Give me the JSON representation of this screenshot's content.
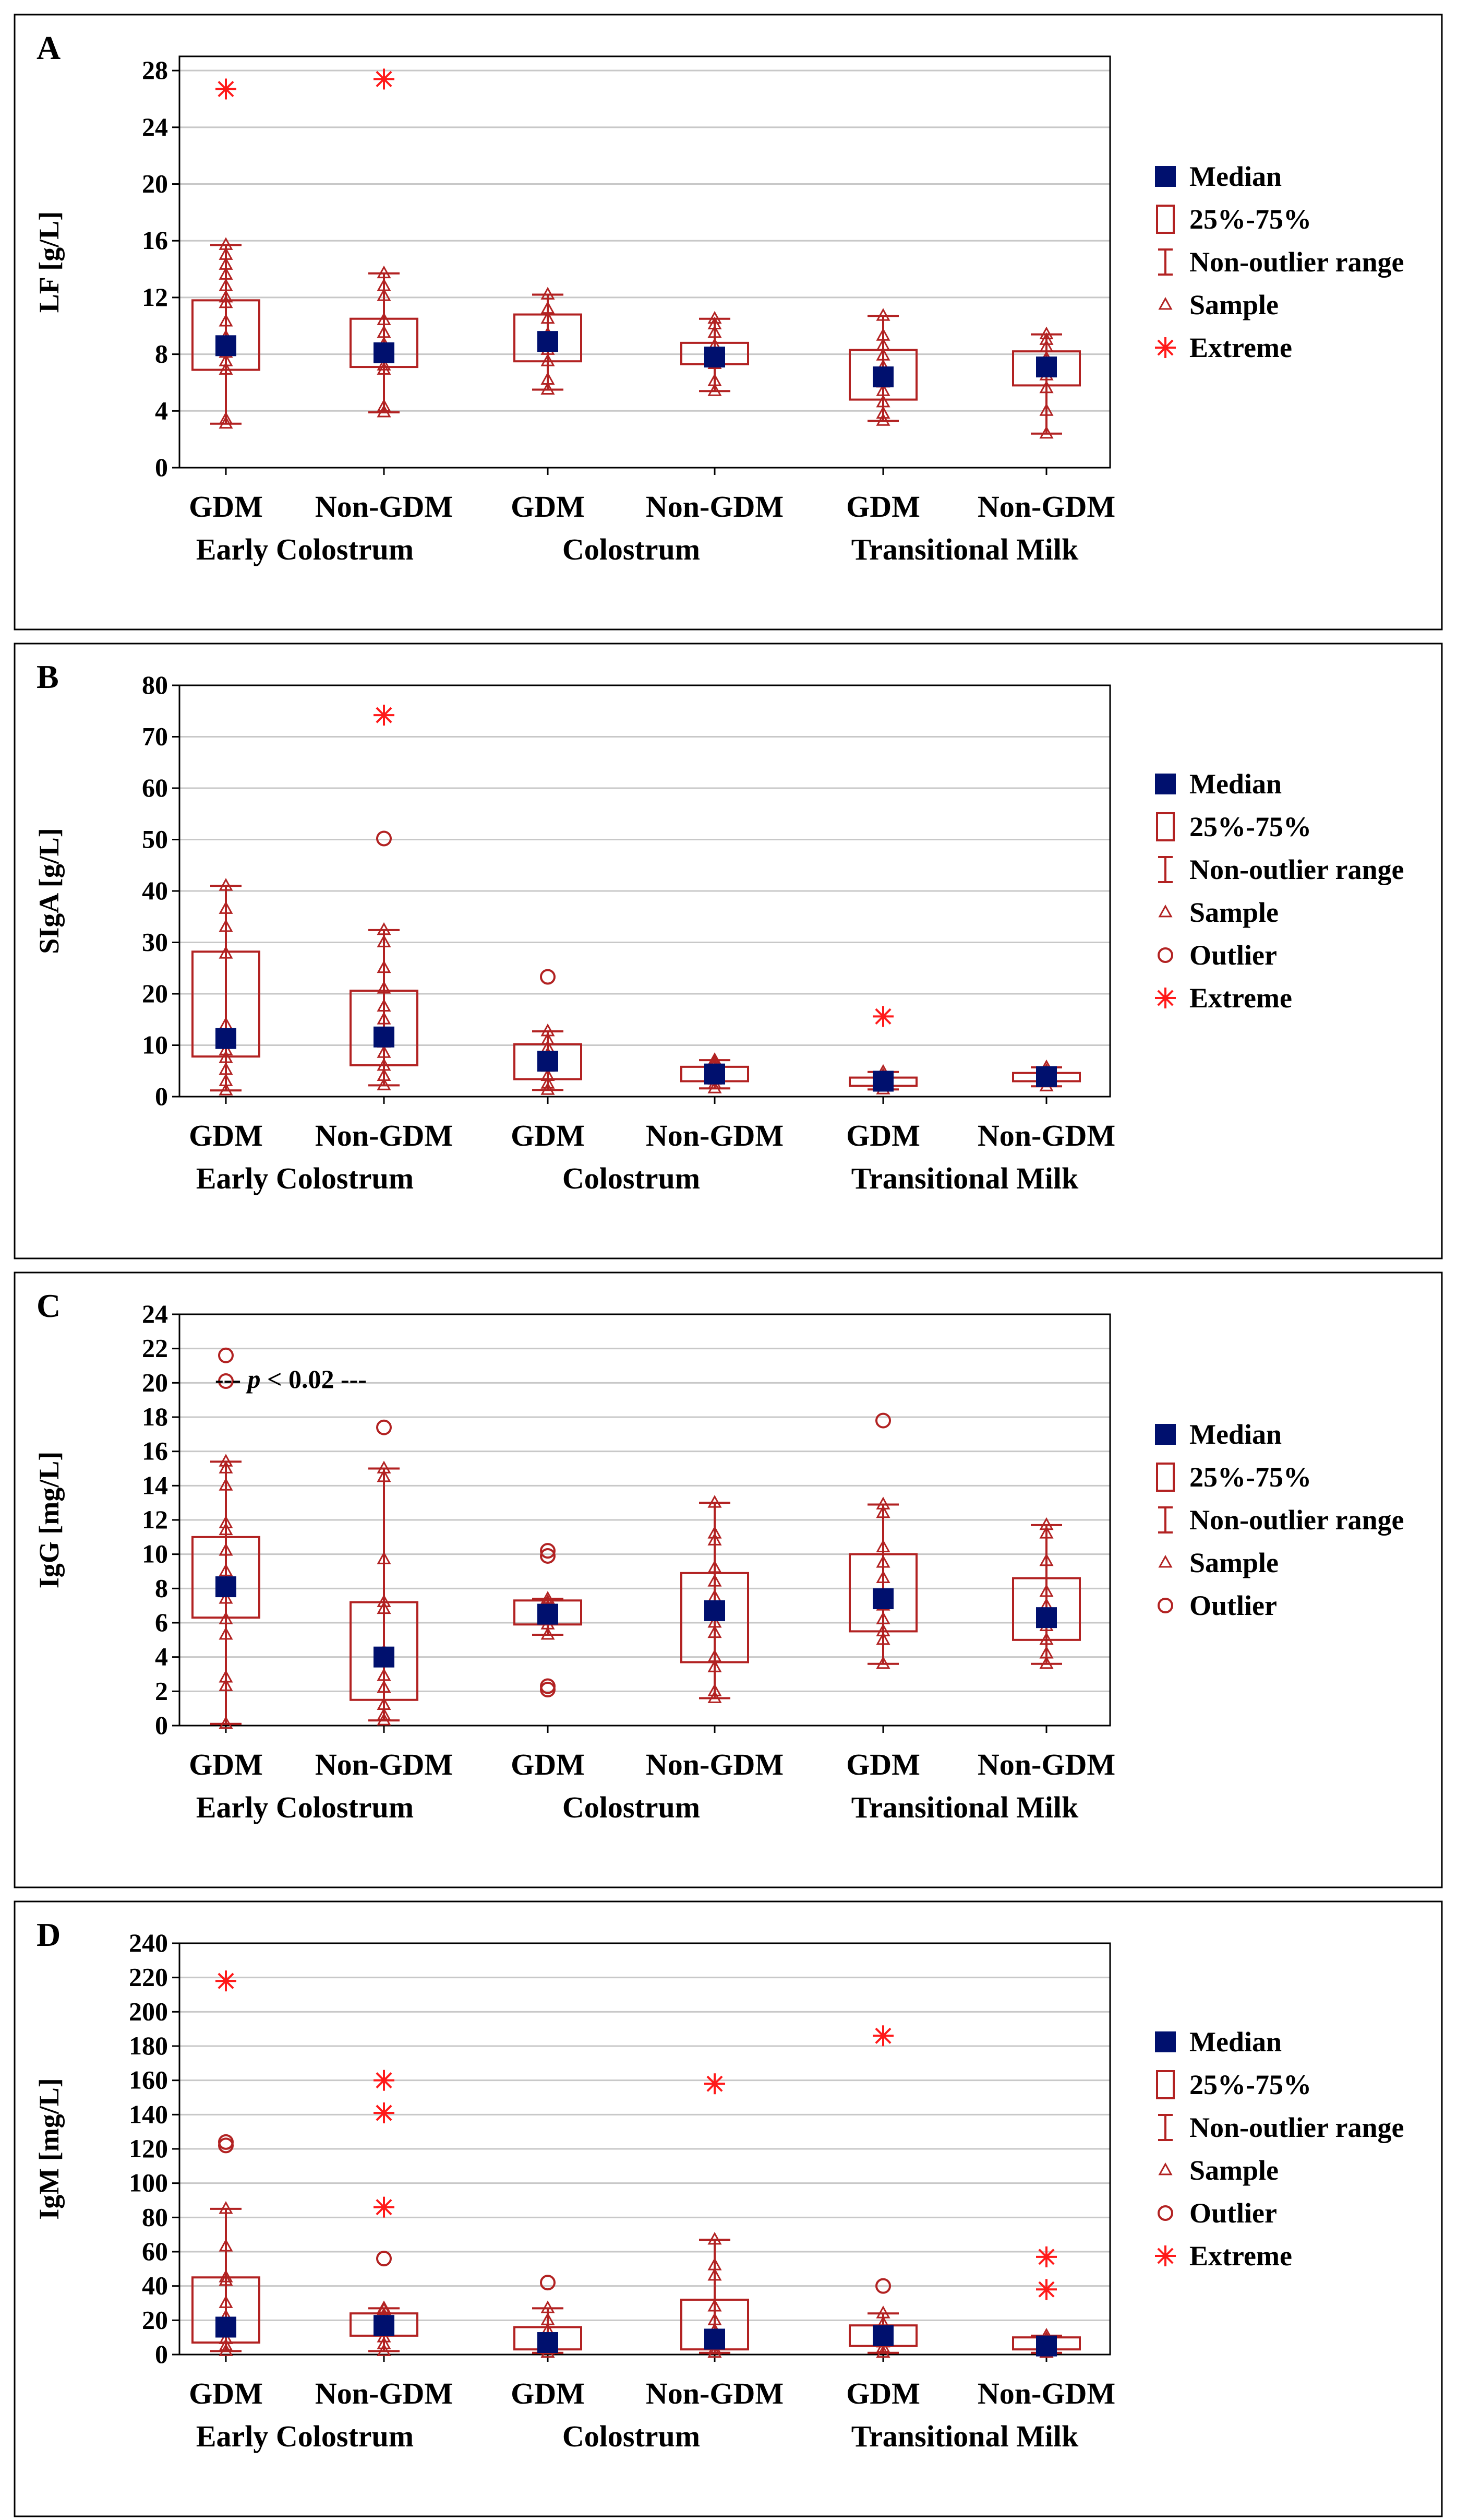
{
  "colors": {
    "box": "#b22222",
    "median": "#00106e",
    "extreme": "#ff1a1a",
    "grid": "#c8c8c8",
    "frame": "#000000"
  },
  "chart_data": [
    {
      "type": "boxplot",
      "panel_letter": "A",
      "ylabel": "LF [g/L]",
      "ylim": [
        0,
        29
      ],
      "yticks": [
        0,
        4,
        8,
        12,
        16,
        20,
        24,
        28
      ],
      "groups": [
        {
          "label": "GDM",
          "median": 8.6,
          "q1": 6.9,
          "q3": 11.8,
          "whisker_low": 3.1,
          "whisker_high": 15.7,
          "samples": [
            3.1,
            3.4,
            6.9,
            7.5,
            8.1,
            8.6,
            9.2,
            10.3,
            11.6,
            12.0,
            12.8,
            13.6,
            14.3,
            15.0,
            15.7
          ],
          "outliers": [],
          "extremes": [
            26.7
          ]
        },
        {
          "label": "Non-GDM",
          "median": 8.1,
          "q1": 7.1,
          "q3": 10.5,
          "whisker_low": 3.9,
          "whisker_high": 13.7,
          "samples": [
            3.9,
            4.3,
            6.9,
            7.2,
            7.8,
            8.1,
            8.7,
            9.5,
            10.4,
            12.1,
            12.8,
            13.7
          ],
          "outliers": [],
          "extremes": [
            27.4
          ]
        },
        {
          "label": "GDM",
          "median": 8.9,
          "q1": 7.5,
          "q3": 10.8,
          "whisker_low": 5.5,
          "whisker_high": 12.2,
          "samples": [
            5.5,
            6.2,
            7.5,
            8.3,
            8.9,
            9.4,
            10.5,
            11.2,
            12.2
          ],
          "outliers": [],
          "extremes": []
        },
        {
          "label": "Non-GDM",
          "median": 7.8,
          "q1": 7.3,
          "q3": 8.8,
          "whisker_low": 5.4,
          "whisker_high": 10.5,
          "samples": [
            5.4,
            6.1,
            7.3,
            7.7,
            8.1,
            8.6,
            9.5,
            10.1,
            10.5
          ],
          "outliers": [],
          "extremes": []
        },
        {
          "label": "GDM",
          "median": 6.4,
          "q1": 4.8,
          "q3": 8.3,
          "whisker_low": 3.3,
          "whisker_high": 10.7,
          "samples": [
            3.3,
            3.8,
            4.6,
            5.4,
            6.0,
            6.4,
            7.1,
            7.9,
            8.6,
            9.3,
            10.7
          ],
          "outliers": [],
          "extremes": []
        },
        {
          "label": "Non-GDM",
          "median": 7.1,
          "q1": 5.8,
          "q3": 8.2,
          "whisker_low": 2.4,
          "whisker_high": 9.4,
          "samples": [
            2.4,
            4.0,
            5.6,
            6.5,
            7.1,
            7.7,
            8.5,
            9.0,
            9.4
          ],
          "outliers": [],
          "extremes": []
        }
      ],
      "legend": [
        "Median",
        "25%-75%",
        "Non-outlier range",
        "Sample",
        "Extreme"
      ],
      "annotation": ""
    },
    {
      "type": "boxplot",
      "panel_letter": "B",
      "ylabel": "SIgA [g/L]",
      "ylim": [
        0,
        80
      ],
      "yticks": [
        0,
        10,
        20,
        30,
        40,
        50,
        60,
        70,
        80
      ],
      "groups": [
        {
          "label": "GDM",
          "median": 11.3,
          "q1": 7.8,
          "q3": 28.2,
          "whisker_low": 1.2,
          "whisker_high": 41.0,
          "samples": [
            1.2,
            3.0,
            5.2,
            7.5,
            9.0,
            10.5,
            12.0,
            14.0,
            27.8,
            33.0,
            36.5,
            41.0
          ],
          "outliers": [],
          "extremes": []
        },
        {
          "label": "Non-GDM",
          "median": 11.6,
          "q1": 6.1,
          "q3": 20.6,
          "whisker_low": 2.2,
          "whisker_high": 32.4,
          "samples": [
            2.2,
            4.0,
            6.0,
            8.5,
            10.5,
            12.0,
            15.0,
            17.5,
            21.0,
            25.0,
            30.0,
            32.4
          ],
          "outliers": [
            50.2
          ],
          "extremes": [
            74.2
          ]
        },
        {
          "label": "GDM",
          "median": 6.9,
          "q1": 3.4,
          "q3": 10.2,
          "whisker_low": 1.3,
          "whisker_high": 12.7,
          "samples": [
            1.3,
            2.5,
            4.0,
            5.8,
            6.9,
            8.2,
            9.5,
            11.0,
            12.7
          ],
          "outliers": [
            23.3
          ],
          "extremes": []
        },
        {
          "label": "Non-GDM",
          "median": 4.4,
          "q1": 3.0,
          "q3": 5.8,
          "whisker_low": 1.6,
          "whisker_high": 7.1,
          "samples": [
            1.6,
            2.4,
            3.3,
            4.0,
            4.6,
            5.2,
            6.0,
            6.6,
            7.1
          ],
          "outliers": [],
          "extremes": []
        },
        {
          "label": "GDM",
          "median": 3.0,
          "q1": 2.1,
          "q3": 3.7,
          "whisker_low": 1.4,
          "whisker_high": 4.8,
          "samples": [
            1.4,
            2.0,
            2.6,
            3.0,
            3.5,
            4.1,
            4.8
          ],
          "outliers": [],
          "extremes": [
            15.6
          ]
        },
        {
          "label": "Non-GDM",
          "median": 3.9,
          "q1": 3.0,
          "q3": 4.6,
          "whisker_low": 2.0,
          "whisker_high": 5.7,
          "samples": [
            2.0,
            2.8,
            3.4,
            3.9,
            4.4,
            5.0,
            5.7
          ],
          "outliers": [],
          "extremes": []
        }
      ],
      "legend": [
        "Median",
        "25%-75%",
        "Non-outlier range",
        "Sample",
        "Outlier",
        "Extreme"
      ],
      "annotation": ""
    },
    {
      "type": "boxplot",
      "panel_letter": "C",
      "ylabel": "IgG [mg/L]",
      "ylim": [
        0,
        24
      ],
      "yticks": [
        0,
        2,
        4,
        6,
        8,
        10,
        12,
        14,
        16,
        18,
        20,
        22,
        24
      ],
      "groups": [
        {
          "label": "GDM",
          "median": 8.1,
          "q1": 6.3,
          "q3": 11.0,
          "whisker_low": 0.1,
          "whisker_high": 15.4,
          "samples": [
            0.1,
            2.3,
            2.8,
            5.3,
            6.2,
            7.4,
            8.1,
            9.0,
            10.2,
            11.4,
            11.8,
            14.0,
            15.0,
            15.4
          ],
          "outliers": [
            20.1,
            21.6
          ],
          "extremes": []
        },
        {
          "label": "Non-GDM",
          "median": 4.0,
          "q1": 1.5,
          "q3": 7.2,
          "whisker_low": 0.3,
          "whisker_high": 15.0,
          "samples": [
            0.3,
            0.6,
            1.2,
            2.2,
            2.9,
            3.8,
            4.3,
            6.8,
            7.2,
            9.7,
            14.5,
            15.0
          ],
          "outliers": [
            17.4
          ],
          "extremes": []
        },
        {
          "label": "GDM",
          "median": 6.5,
          "q1": 5.9,
          "q3": 7.3,
          "whisker_low": 5.3,
          "whisker_high": 7.4,
          "samples": [
            5.3,
            5.9,
            6.2,
            6.5,
            6.9,
            7.2,
            7.4
          ],
          "outliers": [
            2.1,
            2.3,
            9.9,
            10.2
          ],
          "extremes": []
        },
        {
          "label": "Non-GDM",
          "median": 6.7,
          "q1": 3.7,
          "q3": 8.9,
          "whisker_low": 1.6,
          "whisker_high": 13.0,
          "samples": [
            1.6,
            2.0,
            3.4,
            4.0,
            5.4,
            6.0,
            6.7,
            7.5,
            8.4,
            9.2,
            10.8,
            11.2,
            13.0
          ],
          "outliers": [],
          "extremes": []
        },
        {
          "label": "GDM",
          "median": 7.4,
          "q1": 5.5,
          "q3": 10.0,
          "whisker_low": 3.6,
          "whisker_high": 12.9,
          "samples": [
            3.6,
            5.0,
            5.5,
            6.2,
            7.0,
            7.4,
            8.6,
            9.5,
            10.4,
            12.4,
            12.9
          ],
          "outliers": [
            17.8
          ],
          "extremes": []
        },
        {
          "label": "Non-GDM",
          "median": 6.3,
          "q1": 5.0,
          "q3": 8.6,
          "whisker_low": 3.6,
          "whisker_high": 11.7,
          "samples": [
            3.6,
            4.2,
            5.0,
            5.8,
            6.3,
            7.0,
            7.8,
            9.6,
            11.2,
            11.7
          ],
          "outliers": [],
          "extremes": []
        }
      ],
      "legend": [
        "Median",
        "25%-75%",
        "Non-outlier range",
        "Sample",
        "Outlier"
      ],
      "annotation": "--- p < 0.02 ---",
      "annotation_parts": {
        "lead": "--- ",
        "italic": "p",
        "rest": " < 0.02 ---",
        "at_y": 20.2
      }
    },
    {
      "type": "boxplot",
      "panel_letter": "D",
      "ylabel": "IgM [mg/L]",
      "ylim": [
        0,
        240
      ],
      "yticks": [
        0,
        20,
        40,
        60,
        80,
        100,
        120,
        140,
        160,
        180,
        200,
        220,
        240
      ],
      "groups": [
        {
          "label": "GDM",
          "median": 16,
          "q1": 7,
          "q3": 45,
          "whisker_low": 2,
          "whisker_high": 85,
          "samples": [
            2,
            5,
            9,
            14,
            18,
            22,
            30,
            43,
            45,
            63,
            85
          ],
          "outliers": [
            122,
            124
          ],
          "extremes": [
            218
          ]
        },
        {
          "label": "Non-GDM",
          "median": 17,
          "q1": 11,
          "q3": 24,
          "whisker_low": 2,
          "whisker_high": 27,
          "samples": [
            2,
            6,
            10,
            14,
            17,
            20,
            23,
            26,
            27
          ],
          "outliers": [
            56
          ],
          "extremes": [
            86,
            141,
            160
          ]
        },
        {
          "label": "GDM",
          "median": 7,
          "q1": 3,
          "q3": 16,
          "whisker_low": 1,
          "whisker_high": 27,
          "samples": [
            1,
            3,
            5,
            7,
            10,
            14,
            20,
            27
          ],
          "outliers": [
            42
          ],
          "extremes": []
        },
        {
          "label": "Non-GDM",
          "median": 9,
          "q1": 3,
          "q3": 32,
          "whisker_low": 1,
          "whisker_high": 67,
          "samples": [
            1,
            3,
            6,
            9,
            14,
            20,
            28,
            46,
            52,
            67
          ],
          "outliers": [],
          "extremes": [
            158
          ]
        },
        {
          "label": "GDM",
          "median": 11,
          "q1": 5,
          "q3": 17,
          "whisker_low": 1,
          "whisker_high": 24,
          "samples": [
            1,
            4,
            7,
            11,
            14,
            18,
            24
          ],
          "outliers": [
            40
          ],
          "extremes": [
            186
          ]
        },
        {
          "label": "Non-GDM",
          "median": 5,
          "q1": 3,
          "q3": 10,
          "whisker_low": 1,
          "whisker_high": 11,
          "samples": [
            1,
            3,
            5,
            7,
            9,
            11
          ],
          "outliers": [],
          "extremes": [
            38,
            57
          ]
        }
      ],
      "legend": [
        "Median",
        "25%-75%",
        "Non-outlier range",
        "Sample",
        "Outlier",
        "Extreme"
      ],
      "annotation": ""
    }
  ],
  "category_labels": [
    "Early Colostrum",
    "Colostrum",
    "Transitional Milk"
  ]
}
